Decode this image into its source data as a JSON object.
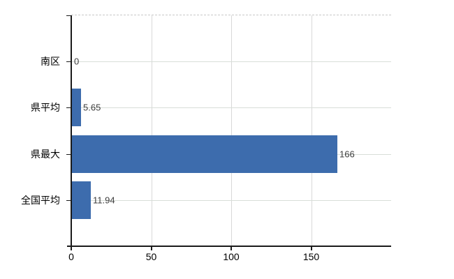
{
  "chart_data": {
    "type": "bar",
    "orientation": "horizontal",
    "title": "",
    "categories": [
      "南区",
      "県平均",
      "県最大",
      "全国平均"
    ],
    "values": [
      0,
      5.65,
      166,
      11.94
    ],
    "value_labels": [
      "0",
      "5.65",
      "166",
      "11.94"
    ],
    "x_ticks": [
      0,
      50,
      100,
      150
    ],
    "x_tick_labels": [
      "0",
      "50",
      "100",
      "150"
    ],
    "xlim": [
      0,
      200
    ],
    "ylabel": "",
    "xlabel": "",
    "grid": true,
    "legend": false,
    "colors": {
      "bar": "#3d6cad",
      "axis": "#1a1a1a",
      "horizontal_gridline": "#d8ded8",
      "vertical_gridline": "#d8d8d8",
      "top_dashed_border": "#c8c8c8",
      "category_text": "#000000",
      "value_text": "#3d3d3d",
      "background": "#ffffff"
    }
  }
}
